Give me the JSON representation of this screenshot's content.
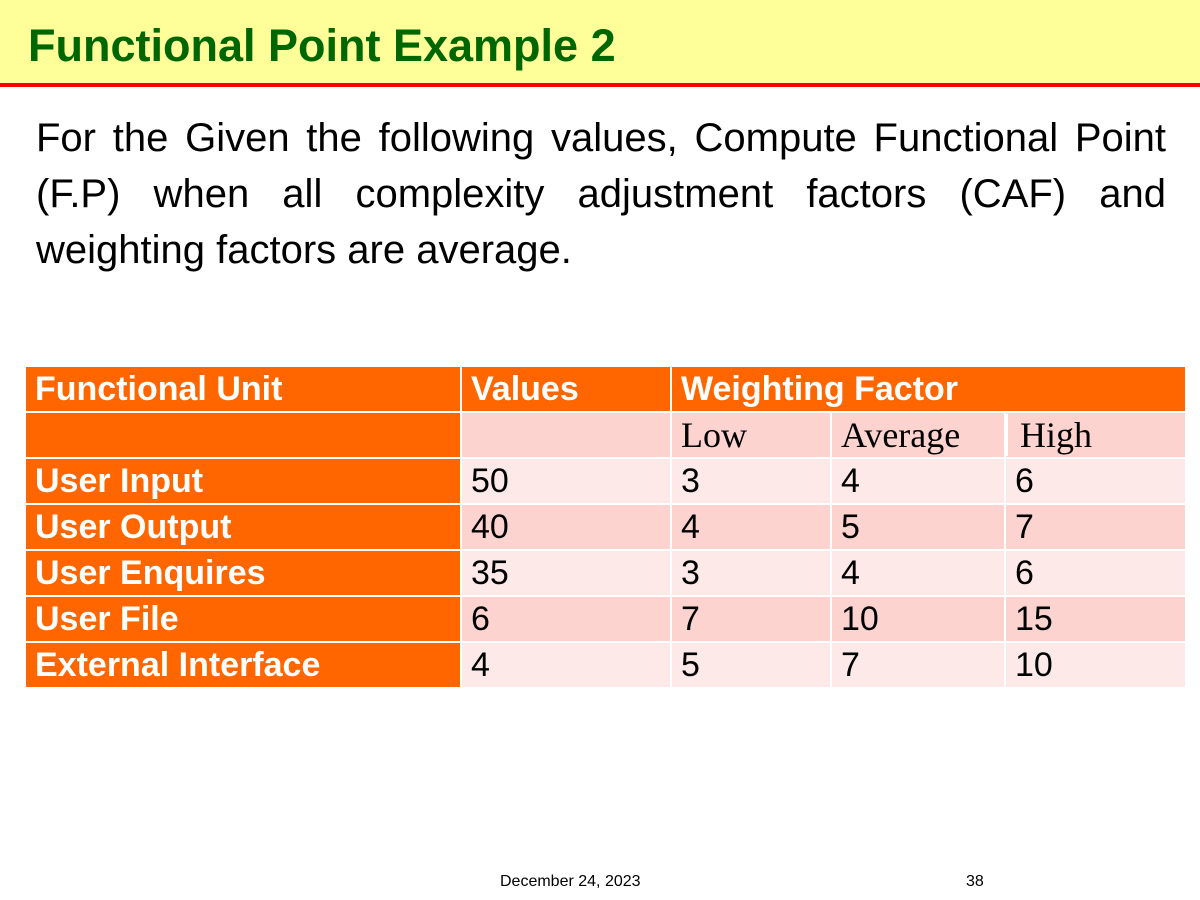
{
  "slide": {
    "title": "Functional Point Example 2",
    "body": "For the Given the following values, Compute Functional Point (F.P) when all complexity adjustment factors (CAF) and weighting factors are average."
  },
  "table": {
    "headers": {
      "unit": "Functional Unit",
      "values": "Values",
      "weighting": "Weighting Factor"
    },
    "subheaders": {
      "low": "Low",
      "average": "Average",
      "high": "High"
    },
    "rows": [
      {
        "unit": "User Input",
        "value": "50",
        "low": "3",
        "average": "4",
        "high": "6"
      },
      {
        "unit": "User Output",
        "value": "40",
        "low": "4",
        "average": "5",
        "high": "7"
      },
      {
        "unit": "User Enquires",
        "value": "35",
        "low": "3",
        "average": "4",
        "high": "6"
      },
      {
        "unit": "User File",
        "value": "6",
        "low": "7",
        "average": "10",
        "high": "15"
      },
      {
        "unit": "External Interface",
        "value": "4",
        "low": "5",
        "average": "7",
        "high": "10"
      }
    ]
  },
  "footer": {
    "date": "December 24, 2023",
    "page": "38"
  },
  "colors": {
    "title_bar": "#ffff99",
    "title_text": "#006600",
    "rule": "#ff0000",
    "table_header": "#ff6600",
    "row_dark": "#fcd3cf",
    "row_light": "#fde9e7"
  }
}
